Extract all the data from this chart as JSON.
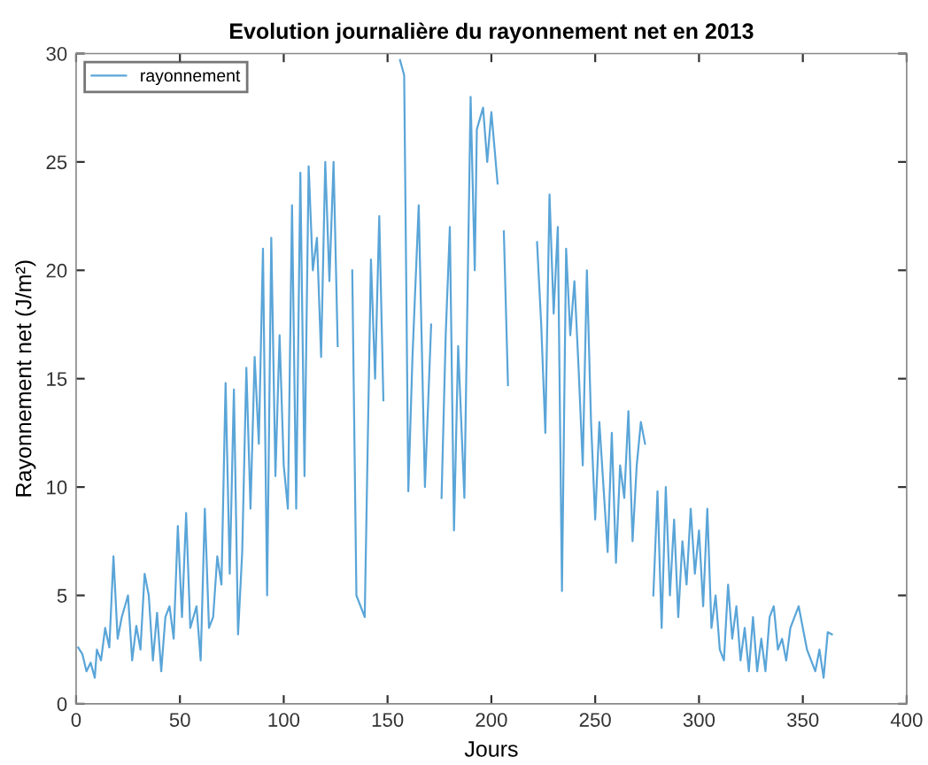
{
  "chart_data": {
    "type": "line",
    "title": "Evolution journalière du rayonnement net en 2013",
    "xlabel": "Jours",
    "ylabel": "Rayonnement net (J/m²)",
    "xlim": [
      0,
      400
    ],
    "ylim": [
      0,
      30
    ],
    "xticks": [
      0,
      50,
      100,
      150,
      200,
      250,
      300,
      350,
      400
    ],
    "yticks": [
      0,
      5,
      10,
      15,
      20,
      25,
      30
    ],
    "legend": "top left",
    "grid": false,
    "x": [
      1,
      3,
      5,
      7,
      9,
      10,
      12,
      14,
      16,
      18,
      20,
      22,
      25,
      27,
      29,
      31,
      33,
      35,
      37,
      39,
      41,
      43,
      45,
      47,
      49,
      51,
      53,
      55,
      58,
      60,
      62,
      64,
      66,
      68,
      70,
      72,
      74,
      76,
      78,
      80,
      82,
      84,
      86,
      88,
      90,
      92,
      94,
      96,
      98,
      100,
      102,
      104,
      106,
      108,
      110,
      112,
      114,
      116,
      118,
      120,
      122,
      124,
      126,
      128,
      133,
      135,
      137,
      139,
      142,
      144,
      146,
      148,
      150,
      156,
      158,
      160,
      162,
      165,
      168,
      171,
      174,
      176,
      178,
      180,
      182,
      184,
      187,
      190,
      192,
      193,
      196,
      198,
      200,
      203,
      205,
      206,
      208,
      220,
      222,
      224,
      226,
      228,
      230,
      232,
      234,
      236,
      238,
      240,
      242,
      244,
      246,
      248,
      250,
      252,
      254,
      256,
      258,
      260,
      262,
      264,
      266,
      268,
      270,
      272,
      274,
      276,
      278,
      280,
      282,
      284,
      286,
      288,
      290,
      292,
      294,
      296,
      298,
      300,
      302,
      304,
      306,
      308,
      310,
      312,
      314,
      316,
      318,
      320,
      322,
      324,
      326,
      328,
      330,
      332,
      334,
      336,
      338,
      340,
      342,
      344,
      346,
      348,
      350,
      352,
      354,
      356,
      358,
      360,
      362,
      364
    ],
    "series": [
      {
        "name": "rayonnement",
        "color": "#5aa5d8",
        "values": [
          2.6,
          2.3,
          1.5,
          1.9,
          1.2,
          2.5,
          2.0,
          3.5,
          2.6,
          6.8,
          3.0,
          4.0,
          5.0,
          2.0,
          3.6,
          2.5,
          6.0,
          5.0,
          2.0,
          4.2,
          1.5,
          4.0,
          4.5,
          3.0,
          8.2,
          4.0,
          8.8,
          3.5,
          4.5,
          2.0,
          9.0,
          3.5,
          4.0,
          6.8,
          5.5,
          14.8,
          6.0,
          14.5,
          3.2,
          7.0,
          15.5,
          9.0,
          16.0,
          12.0,
          21.0,
          5.0,
          21.5,
          10.5,
          17.0,
          11.0,
          9.0,
          23.0,
          9.0,
          24.5,
          10.5,
          24.8,
          20.0,
          21.5,
          16.0,
          25.0,
          19.5,
          25.0,
          16.5,
          null,
          20.0,
          5.0,
          4.5,
          4.0,
          20.5,
          15.0,
          22.5,
          14.0,
          null,
          29.7,
          29.0,
          9.8,
          16.0,
          23.0,
          10.0,
          17.5,
          null,
          9.5,
          17.0,
          22.0,
          8.0,
          16.5,
          9.5,
          28.0,
          20.0,
          26.5,
          27.5,
          25.0,
          27.3,
          24.0,
          null,
          21.8,
          14.7,
          null,
          21.3,
          17.5,
          12.5,
          23.5,
          18.0,
          22.0,
          5.2,
          21.0,
          17.0,
          19.5,
          15.5,
          11.0,
          20.0,
          13.0,
          8.5,
          13.0,
          10.0,
          7.0,
          12.5,
          6.5,
          11.0,
          9.5,
          13.5,
          7.5,
          11.0,
          13.0,
          12.0,
          null,
          5.0,
          9.8,
          3.5,
          10.0,
          5.0,
          8.5,
          4.0,
          7.5,
          5.5,
          9.0,
          6.0,
          8.0,
          4.5,
          9.0,
          3.5,
          5.0,
          2.5,
          2.0,
          5.5,
          3.0,
          4.5,
          2.0,
          3.5,
          1.5,
          4.0,
          1.5,
          3.0,
          1.5,
          4.0,
          4.5,
          2.5,
          3.0,
          2.0,
          3.5,
          4.0,
          4.5,
          3.5,
          2.5,
          2.0,
          1.5,
          2.5,
          1.2,
          3.3,
          3.2
        ]
      }
    ]
  }
}
